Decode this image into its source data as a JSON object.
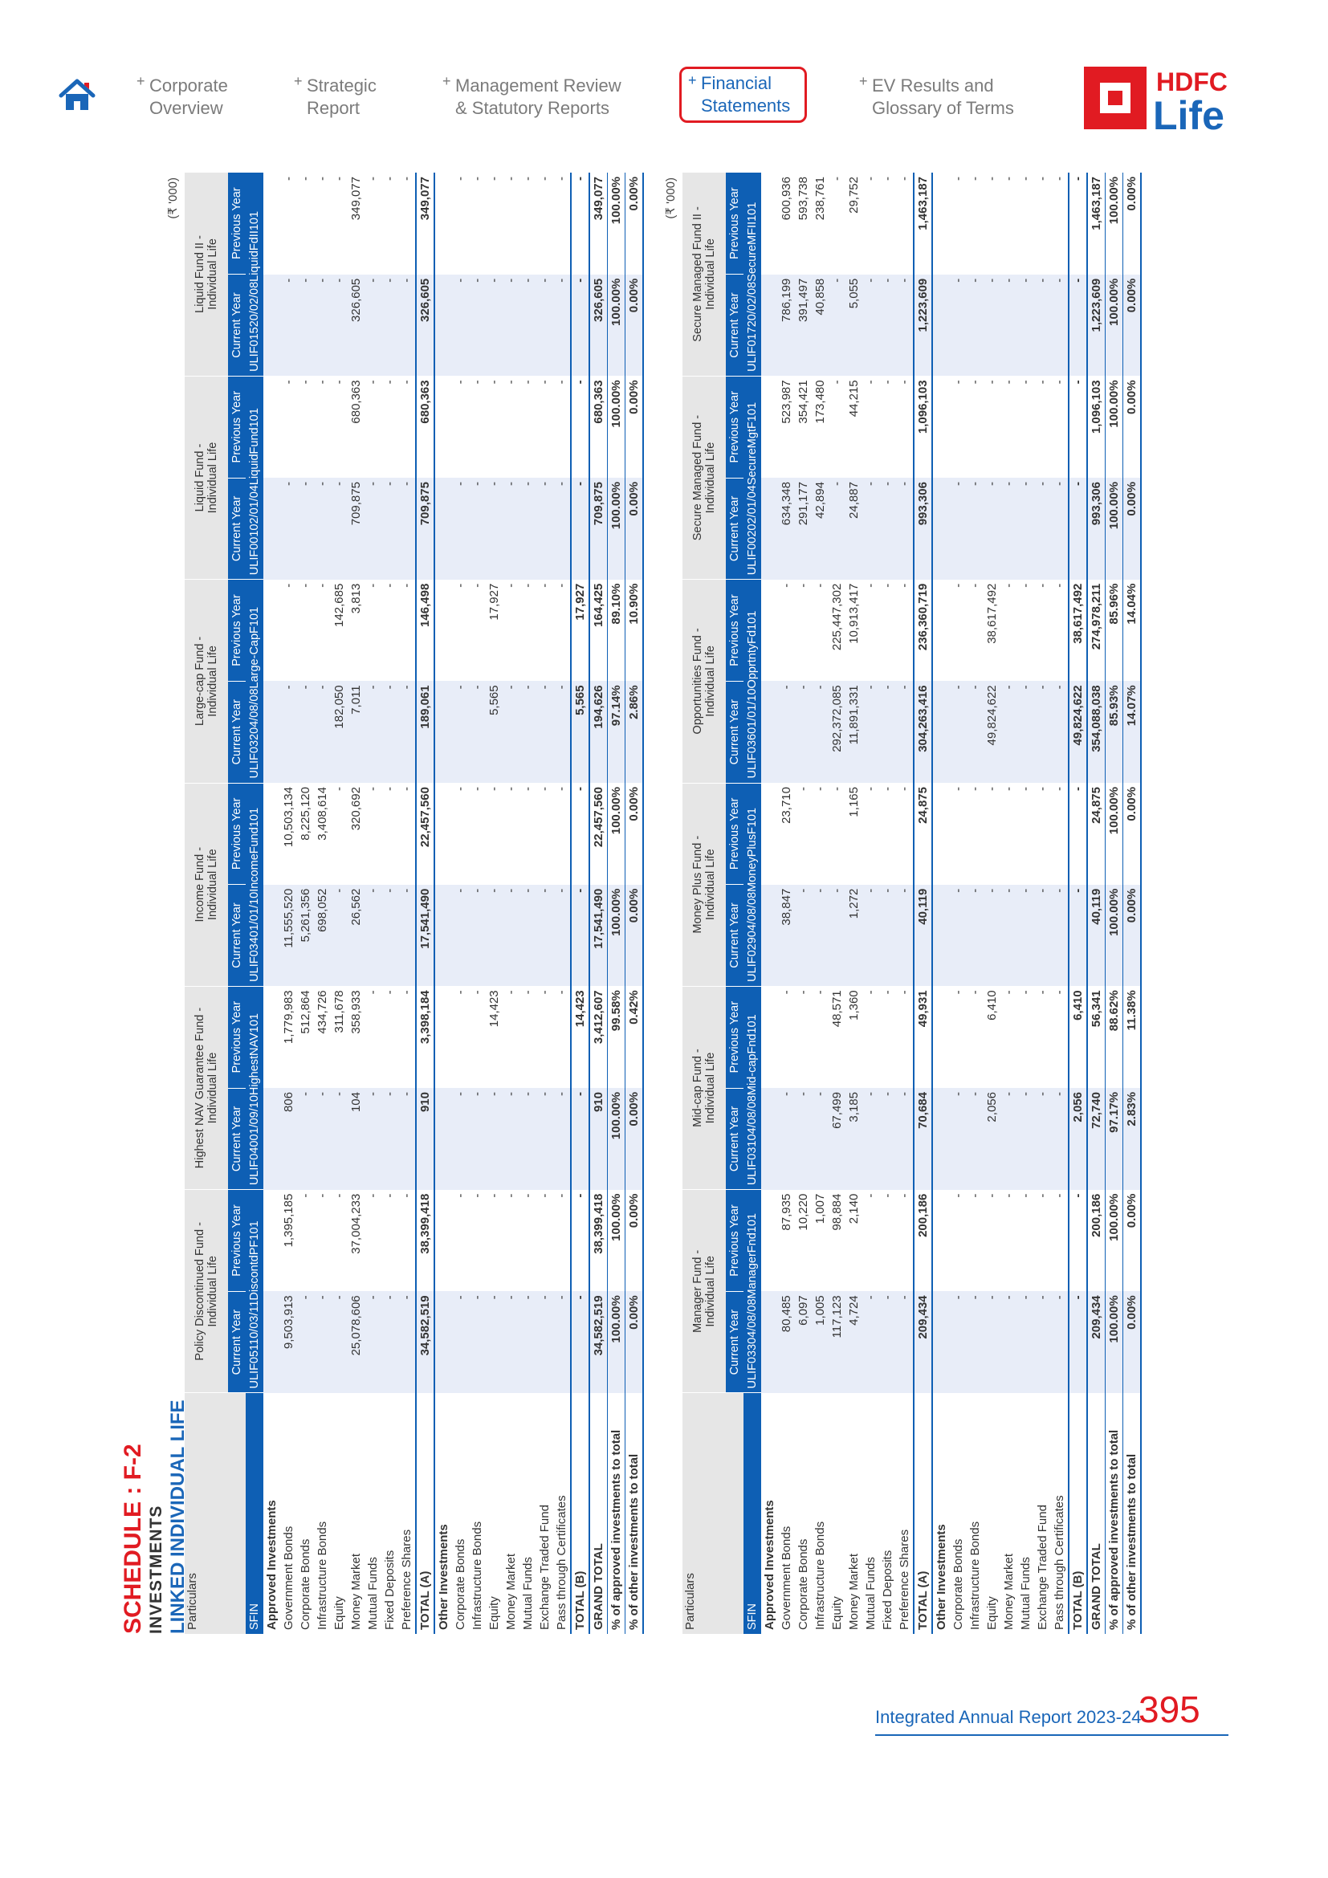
{
  "nav": {
    "items": [
      {
        "label1": "Corporate",
        "label2": "Overview",
        "active": false
      },
      {
        "label1": "Strategic",
        "label2": "Report",
        "active": false
      },
      {
        "label1": "Management Review",
        "label2": "& Statutory Reports",
        "active": false
      },
      {
        "label1": "Financial",
        "label2": "Statements",
        "active": true
      },
      {
        "label1": "EV Results and",
        "label2": "Glossary of Terms",
        "active": false
      }
    ],
    "plus": "+",
    "logo_top": "HDFC",
    "logo_bottom": "Life"
  },
  "schedule": {
    "title": "SCHEDULE : F-2",
    "subtitle": "INVESTMENTS",
    "section": "LINKED INDIVIDUAL LIFE"
  },
  "unit": "(₹ '000)",
  "labels": {
    "particulars": "Particulars",
    "sfin": "SFIN",
    "current": "Current Year",
    "previous": "Previous Year"
  },
  "tables": [
    {
      "funds": [
        {
          "name1": "Policy Discontinued Fund -",
          "name2": "Individual Life",
          "sfin": "ULIF05110/03/11DiscontdPF101"
        },
        {
          "name1": "Highest NAV Guarantee Fund -",
          "name2": "Individual Life",
          "sfin": "ULIF04001/09/10HighestNAV101"
        },
        {
          "name1": "Income Fund -",
          "name2": "Individual Life",
          "sfin": "ULIF03401/01/10IncomeFund101"
        },
        {
          "name1": "Large-cap Fund -",
          "name2": "Individual Life",
          "sfin": "ULIF03204/08/08Large-CapF101"
        },
        {
          "name1": "Liquid Fund -",
          "name2": "Individual Life",
          "sfin": "ULIF00102/01/04LiquidFund101"
        },
        {
          "name1": "Liquid Fund II -",
          "name2": "Individual Life",
          "sfin": "ULIF01520/02/08LiquidFdII101"
        }
      ],
      "rows": [
        {
          "label": "Approved Investments",
          "type": "section",
          "values": [
            "",
            "",
            "",
            "",
            "",
            "",
            "",
            "",
            "",
            "",
            "",
            ""
          ]
        },
        {
          "label": "Government Bonds",
          "values": [
            "9,503,913",
            "1,395,185",
            "806",
            "1,779,983",
            "11,555,520",
            "10,503,134",
            "-",
            "-",
            "-",
            "-",
            "-",
            "-"
          ]
        },
        {
          "label": "Corporate Bonds",
          "values": [
            "-",
            "-",
            "-",
            "512,864",
            "5,261,356",
            "8,225,120",
            "-",
            "-",
            "-",
            "-",
            "-",
            "-"
          ]
        },
        {
          "label": "Infrastructure Bonds",
          "values": [
            "-",
            "-",
            "-",
            "434,726",
            "698,052",
            "3,408,614",
            "-",
            "-",
            "-",
            "-",
            "-",
            "-"
          ]
        },
        {
          "label": "Equity",
          "values": [
            "-",
            "-",
            "-",
            "311,678",
            "-",
            "-",
            "182,050",
            "142,685",
            "-",
            "-",
            "-",
            "-"
          ]
        },
        {
          "label": "Money Market",
          "values": [
            "25,078,606",
            "37,004,233",
            "104",
            "358,933",
            "26,562",
            "320,692",
            "7,011",
            "3,813",
            "709,875",
            "680,363",
            "326,605",
            "349,077"
          ]
        },
        {
          "label": "Mutual Funds",
          "values": [
            "-",
            "-",
            "-",
            "-",
            "-",
            "-",
            "-",
            "-",
            "-",
            "-",
            "-",
            "-"
          ]
        },
        {
          "label": "Fixed Deposits",
          "values": [
            "-",
            "-",
            "-",
            "-",
            "-",
            "-",
            "-",
            "-",
            "-",
            "-",
            "-",
            "-"
          ]
        },
        {
          "label": "Preference Shares",
          "values": [
            "-",
            "-",
            "-",
            "-",
            "-",
            "-",
            "-",
            "-",
            "-",
            "-",
            "-",
            "-"
          ]
        },
        {
          "label": "TOTAL (A)",
          "type": "total",
          "values": [
            "34,582,519",
            "38,399,418",
            "910",
            "3,398,184",
            "17,541,490",
            "22,457,560",
            "189,061",
            "146,498",
            "709,875",
            "680,363",
            "326,605",
            "349,077"
          ]
        },
        {
          "label": "Other Investments",
          "type": "section",
          "values": [
            "",
            "",
            "",
            "",
            "",
            "",
            "",
            "",
            "",
            "",
            "",
            ""
          ]
        },
        {
          "label": "Corporate Bonds",
          "values": [
            "-",
            "-",
            "-",
            "-",
            "-",
            "-",
            "-",
            "-",
            "-",
            "-",
            "-",
            "-"
          ]
        },
        {
          "label": "Infrastructure Bonds",
          "values": [
            "-",
            "-",
            "-",
            "-",
            "-",
            "-",
            "-",
            "-",
            "-",
            "-",
            "-",
            "-"
          ]
        },
        {
          "label": "Equity",
          "values": [
            "-",
            "-",
            "-",
            "14,423",
            "-",
            "-",
            "5,565",
            "17,927",
            "-",
            "-",
            "-",
            "-"
          ]
        },
        {
          "label": "Money Market",
          "values": [
            "-",
            "-",
            "-",
            "-",
            "-",
            "-",
            "-",
            "-",
            "-",
            "-",
            "-",
            "-"
          ]
        },
        {
          "label": "Mutual Funds",
          "values": [
            "-",
            "-",
            "-",
            "-",
            "-",
            "-",
            "-",
            "-",
            "-",
            "-",
            "-",
            "-"
          ]
        },
        {
          "label": "Exchange Traded Fund",
          "values": [
            "-",
            "-",
            "-",
            "-",
            "-",
            "-",
            "-",
            "-",
            "-",
            "-",
            "-",
            "-"
          ]
        },
        {
          "label": "Pass through Certificates",
          "values": [
            "-",
            "-",
            "-",
            "-",
            "-",
            "-",
            "-",
            "-",
            "-",
            "-",
            "-",
            "-"
          ]
        },
        {
          "label": "TOTAL (B)",
          "type": "totb",
          "values": [
            "-",
            "-",
            "-",
            "14,423",
            "-",
            "-",
            "5,565",
            "17,927",
            "-",
            "-",
            "-",
            "-"
          ]
        },
        {
          "label": "GRAND TOTAL",
          "type": "grand",
          "values": [
            "34,582,519",
            "38,399,418",
            "910",
            "3,412,607",
            "17,541,490",
            "22,457,560",
            "194,626",
            "164,425",
            "709,875",
            "680,363",
            "326,605",
            "349,077"
          ]
        },
        {
          "label": "% of approved investments to total",
          "type": "pct",
          "values": [
            "100.00%",
            "100.00%",
            "100.00%",
            "99.58%",
            "100.00%",
            "100.00%",
            "97.14%",
            "89.10%",
            "100.00%",
            "100.00%",
            "100.00%",
            "100.00%"
          ]
        },
        {
          "label": "% of other investments to total",
          "type": "pctlast",
          "values": [
            "0.00%",
            "0.00%",
            "0.00%",
            "0.42%",
            "0.00%",
            "0.00%",
            "2.86%",
            "10.90%",
            "0.00%",
            "0.00%",
            "0.00%",
            "0.00%"
          ]
        }
      ]
    },
    {
      "funds": [
        {
          "name1": "Manager Fund -",
          "name2": "Individual Life",
          "sfin": "ULIF03304/08/08ManagerFnd101"
        },
        {
          "name1": "Mid-cap Fund -",
          "name2": "Individual Life",
          "sfin": "ULIF03104/08/08Mid-capFnd101"
        },
        {
          "name1": "Money Plus Fund -",
          "name2": "Individual Life",
          "sfin": "ULIF02904/08/08MoneyPlusF101"
        },
        {
          "name1": "Opportunities Fund -",
          "name2": "Individual Life",
          "sfin": "ULIF03601/01/10OpprtntyFd101"
        },
        {
          "name1": "Secure Managed Fund -",
          "name2": "Individual Life",
          "sfin": "ULIF00202/01/04SecureMgtF101"
        },
        {
          "name1": "Secure Managed Fund II -",
          "name2": "Individual Life",
          "sfin": "ULIF01720/02/08SecureMFII101"
        }
      ],
      "rows": [
        {
          "label": "Approved Investments",
          "type": "section",
          "values": [
            "",
            "",
            "",
            "",
            "",
            "",
            "",
            "",
            "",
            "",
            "",
            ""
          ]
        },
        {
          "label": "Government Bonds",
          "values": [
            "80,485",
            "87,935",
            "-",
            "-",
            "38,847",
            "23,710",
            "-",
            "-",
            "634,348",
            "523,987",
            "786,199",
            "600,936"
          ]
        },
        {
          "label": "Corporate Bonds",
          "values": [
            "6,097",
            "10,220",
            "-",
            "-",
            "-",
            "-",
            "-",
            "-",
            "291,177",
            "354,421",
            "391,497",
            "593,738"
          ]
        },
        {
          "label": "Infrastructure Bonds",
          "values": [
            "1,005",
            "1,007",
            "-",
            "-",
            "-",
            "-",
            "-",
            "-",
            "42,894",
            "173,480",
            "40,858",
            "238,761"
          ]
        },
        {
          "label": "Equity",
          "values": [
            "117,123",
            "98,884",
            "67,499",
            "48,571",
            "-",
            "-",
            "292,372,085",
            "225,447,302",
            "-",
            "-",
            "-",
            "-"
          ]
        },
        {
          "label": "Money Market",
          "values": [
            "4,724",
            "2,140",
            "3,185",
            "1,360",
            "1,272",
            "1,165",
            "11,891,331",
            "10,913,417",
            "24,887",
            "44,215",
            "5,055",
            "29,752"
          ]
        },
        {
          "label": "Mutual Funds",
          "values": [
            "-",
            "-",
            "-",
            "-",
            "-",
            "-",
            "-",
            "-",
            "-",
            "-",
            "-",
            "-"
          ]
        },
        {
          "label": "Fixed Deposits",
          "values": [
            "-",
            "-",
            "-",
            "-",
            "-",
            "-",
            "-",
            "-",
            "-",
            "-",
            "-",
            "-"
          ]
        },
        {
          "label": "Preference Shares",
          "values": [
            "-",
            "-",
            "-",
            "-",
            "-",
            "-",
            "-",
            "-",
            "-",
            "-",
            "-",
            "-"
          ]
        },
        {
          "label": "TOTAL (A)",
          "type": "total",
          "values": [
            "209,434",
            "200,186",
            "70,684",
            "49,931",
            "40,119",
            "24,875",
            "304,263,416",
            "236,360,719",
            "993,306",
            "1,096,103",
            "1,223,609",
            "1,463,187"
          ]
        },
        {
          "label": "Other Investments",
          "type": "section",
          "values": [
            "",
            "",
            "",
            "",
            "",
            "",
            "",
            "",
            "",
            "",
            "",
            ""
          ]
        },
        {
          "label": "Corporate Bonds",
          "values": [
            "-",
            "-",
            "-",
            "-",
            "-",
            "-",
            "-",
            "-",
            "-",
            "-",
            "-",
            "-"
          ]
        },
        {
          "label": "Infrastructure Bonds",
          "values": [
            "-",
            "-",
            "-",
            "-",
            "-",
            "-",
            "-",
            "-",
            "-",
            "-",
            "-",
            "-"
          ]
        },
        {
          "label": "Equity",
          "values": [
            "-",
            "-",
            "2,056",
            "6,410",
            "-",
            "-",
            "49,824,622",
            "38,617,492",
            "-",
            "-",
            "-",
            "-"
          ]
        },
        {
          "label": "Money Market",
          "values": [
            "-",
            "-",
            "-",
            "-",
            "-",
            "-",
            "-",
            "-",
            "-",
            "-",
            "-",
            "-"
          ]
        },
        {
          "label": "Mutual Funds",
          "values": [
            "-",
            "-",
            "-",
            "-",
            "-",
            "-",
            "-",
            "-",
            "-",
            "-",
            "-",
            "-"
          ]
        },
        {
          "label": "Exchange Traded Fund",
          "values": [
            "-",
            "-",
            "-",
            "-",
            "-",
            "-",
            "-",
            "-",
            "-",
            "-",
            "-",
            "-"
          ]
        },
        {
          "label": "Pass through Certificates",
          "values": [
            "-",
            "-",
            "-",
            "-",
            "-",
            "-",
            "-",
            "-",
            "-",
            "-",
            "-",
            "-"
          ]
        },
        {
          "label": "TOTAL (B)",
          "type": "totb",
          "values": [
            "-",
            "-",
            "2,056",
            "6,410",
            "-",
            "-",
            "49,824,622",
            "38,617,492",
            "-",
            "-",
            "-",
            "-"
          ]
        },
        {
          "label": "GRAND TOTAL",
          "type": "grand",
          "values": [
            "209,434",
            "200,186",
            "72,740",
            "56,341",
            "40,119",
            "24,875",
            "354,088,038",
            "274,978,211",
            "993,306",
            "1,096,103",
            "1,223,609",
            "1,463,187"
          ]
        },
        {
          "label": "% of approved investments to total",
          "type": "pct",
          "values": [
            "100.00%",
            "100.00%",
            "97.17%",
            "88.62%",
            "100.00%",
            "100.00%",
            "85.93%",
            "85.96%",
            "100.00%",
            "100.00%",
            "100.00%",
            "100.00%"
          ]
        },
        {
          "label": "% of other investments to total",
          "type": "pctlast",
          "values": [
            "0.00%",
            "0.00%",
            "2.83%",
            "11.38%",
            "0.00%",
            "0.00%",
            "14.07%",
            "14.04%",
            "0.00%",
            "0.00%",
            "0.00%",
            "0.00%"
          ]
        }
      ]
    }
  ],
  "footer": {
    "report": "Integrated Annual Report 2023-24",
    "page": "395"
  }
}
